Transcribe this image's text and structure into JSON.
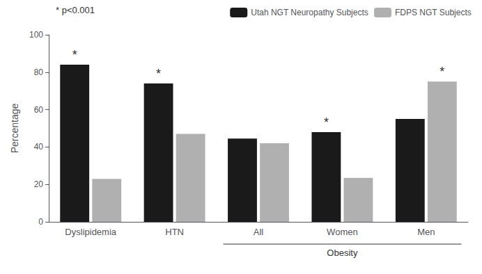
{
  "chart_data": {
    "type": "bar",
    "categories": [
      "Dyslipidemia",
      "HTN",
      "All",
      "Women",
      "Men"
    ],
    "series": [
      {
        "name": "Utah NGT Neuropathy Subjects",
        "color": "#1a1a1a",
        "values": [
          84,
          74,
          44.5,
          48,
          55
        ],
        "significant": [
          true,
          true,
          false,
          true,
          false
        ]
      },
      {
        "name": "FDPS NGT Subjects",
        "color": "#b0b0b0",
        "values": [
          23,
          47,
          42,
          23.5,
          75
        ],
        "significant": [
          false,
          false,
          false,
          false,
          true
        ]
      }
    ],
    "significance_mark": "*",
    "ylabel": "Percentage",
    "ylim": [
      0,
      100
    ],
    "yticks": [
      0,
      20,
      40,
      60,
      80,
      100
    ],
    "annotations": [
      "* p<0.001"
    ],
    "groups": [
      {
        "label": "Obesity",
        "categories": [
          "All",
          "Women",
          "Men"
        ]
      }
    ],
    "legend": "upper right",
    "grid": false
  }
}
